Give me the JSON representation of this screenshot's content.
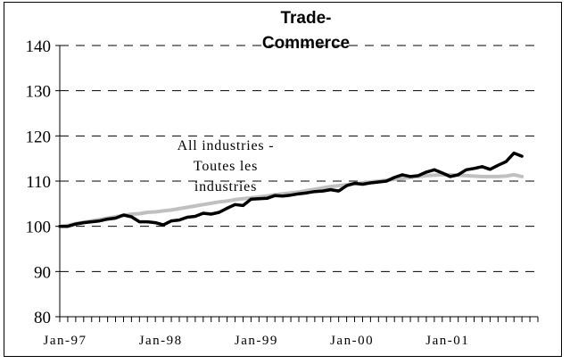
{
  "chart_data": {
    "type": "line",
    "title_lines": [
      "Trade-",
      "Commerce"
    ],
    "annotation_lines": [
      "All industries -",
      "Toutes les",
      "industries"
    ],
    "xlabel": "",
    "ylabel": "",
    "ylim": [
      80,
      140
    ],
    "y_ticks": [
      80,
      90,
      100,
      110,
      120,
      130,
      140
    ],
    "y_tick_labels": [
      "80",
      "90",
      "100",
      "110",
      "120",
      "130",
      "140"
    ],
    "x_tick_labels": [
      "Jan-97",
      "Jan-98",
      "Jan-99",
      "Jan-00",
      "Jan-01"
    ],
    "x_label_month_index": [
      0,
      12,
      24,
      36,
      48
    ],
    "n_months": 60,
    "grid": "horizontal dashed",
    "series": [
      {
        "color": "#000000",
        "values": [
          100,
          100,
          100.5,
          100.8,
          101,
          101.2,
          101.6,
          101.8,
          102.5,
          102.1,
          101,
          101,
          100.8,
          100.3,
          101.2,
          101.4,
          102,
          102.2,
          102.9,
          102.7,
          103.1,
          104,
          104.8,
          104.6,
          106,
          106.1,
          106.2,
          106.8,
          106.7,
          106.9,
          107.2,
          107.4,
          107.7,
          107.8,
          108.1,
          107.8,
          109,
          109.5,
          109.3,
          109.6,
          109.8,
          110,
          110.8,
          111.4,
          111,
          111.2,
          112,
          112.5,
          111.8,
          111,
          111.4,
          112.5,
          112.8,
          113.2,
          112.6,
          113.5,
          114.3,
          116.2,
          115.5
        ]
      },
      {
        "color": "#c0c0c0",
        "values": [
          100,
          100.2,
          100.6,
          100.9,
          101.2,
          101.5,
          101.8,
          102.1,
          102.4,
          102.7,
          102.8,
          103.1,
          103.2,
          103.4,
          103.6,
          103.9,
          104.2,
          104.5,
          104.8,
          105.1,
          105.4,
          105.6,
          105.9,
          106.1,
          106.3,
          106.5,
          106.7,
          107,
          107.2,
          107.4,
          107.6,
          107.9,
          108.2,
          108.5,
          108.8,
          109,
          109.2,
          109.4,
          109.6,
          109.8,
          110,
          110.2,
          110.4,
          110.6,
          110.8,
          111,
          111.2,
          111.3,
          111.4,
          111.4,
          111.3,
          111.2,
          111.1,
          111,
          111,
          111,
          111.1,
          111.4,
          111
        ]
      }
    ]
  }
}
